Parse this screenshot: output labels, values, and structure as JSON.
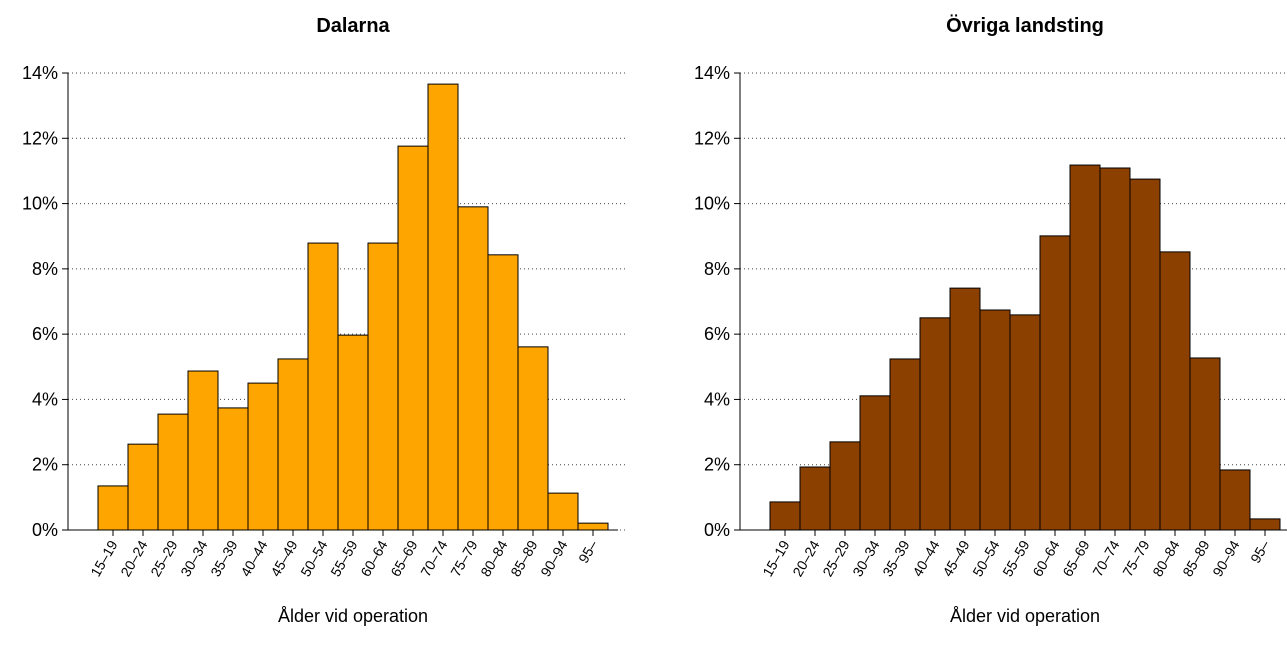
{
  "chart_data": [
    {
      "type": "bar",
      "title": "Dalarna",
      "xlabel": "Ålder vid operation",
      "color": "#FFA500",
      "grid": true,
      "categories": [
        "15–19",
        "20–24",
        "25–29",
        "30–34",
        "35–39",
        "40–44",
        "45–49",
        "50–54",
        "55–59",
        "60–64",
        "65–69",
        "70–74",
        "75–79",
        "80–84",
        "85–89",
        "90–94",
        "95–"
      ],
      "values": [
        1.35,
        2.63,
        3.55,
        4.87,
        3.74,
        4.5,
        5.24,
        8.79,
        5.97,
        8.79,
        11.76,
        13.66,
        9.9,
        8.43,
        5.61,
        1.13,
        0.21
      ],
      "ylim": [
        0,
        14
      ],
      "yticks": [
        {
          "value": 0,
          "label": "0%"
        },
        {
          "value": 2,
          "label": "2%"
        },
        {
          "value": 4,
          "label": "4%"
        },
        {
          "value": 6,
          "label": "6%"
        },
        {
          "value": 8,
          "label": "8%"
        },
        {
          "value": 10,
          "label": "10%"
        },
        {
          "value": 12,
          "label": "12%"
        },
        {
          "value": 14,
          "label": "14%"
        }
      ]
    },
    {
      "type": "bar",
      "title": "Övriga landsting",
      "xlabel": "Ålder vid operation",
      "color": "#8B4000",
      "grid": true,
      "categories": [
        "15–19",
        "20–24",
        "25–29",
        "30–34",
        "35–39",
        "40–44",
        "45–49",
        "50–54",
        "55–59",
        "60–64",
        "65–69",
        "70–74",
        "75–79",
        "80–84",
        "85–89",
        "90–94",
        "95–"
      ],
      "values": [
        0.86,
        1.93,
        2.7,
        4.11,
        5.24,
        6.5,
        7.41,
        6.74,
        6.59,
        9.01,
        11.18,
        11.09,
        10.75,
        8.52,
        5.27,
        1.84,
        0.34
      ],
      "ylim": [
        0,
        14
      ],
      "yticks": [
        {
          "value": 0,
          "label": "0%"
        },
        {
          "value": 2,
          "label": "2%"
        },
        {
          "value": 4,
          "label": "4%"
        },
        {
          "value": 6,
          "label": "6%"
        },
        {
          "value": 8,
          "label": "8%"
        },
        {
          "value": 10,
          "label": "10%"
        },
        {
          "value": 12,
          "label": "12%"
        },
        {
          "value": 14,
          "label": "14%"
        }
      ]
    }
  ]
}
